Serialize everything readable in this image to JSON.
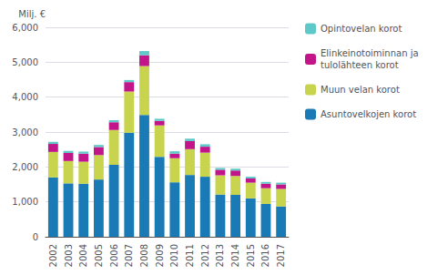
{
  "chart_data": {
    "type": "bar",
    "stacked": true,
    "grid": true,
    "legend": "right",
    "ylabel": "Milj. €",
    "categories": [
      "2002",
      "2003",
      "2004",
      "2005",
      "2006",
      "2007",
      "2008",
      "2009",
      "2010",
      "2011",
      "2012",
      "2013",
      "2014",
      "2015",
      "2016",
      "2017"
    ],
    "ylim": [
      0,
      6000
    ],
    "yticks": [
      0,
      1000,
      2000,
      3000,
      4000,
      5000,
      6000
    ],
    "series": [
      {
        "name": "Asuntovelkojen korot",
        "color": "#1a7ab5",
        "values": [
          1700,
          1530,
          1520,
          1640,
          2060,
          2980,
          3490,
          2290,
          1560,
          1770,
          1720,
          1210,
          1200,
          1100,
          940,
          870
        ]
      },
      {
        "name": "Muun velan korot",
        "color": "#c8d44e",
        "values": [
          730,
          640,
          630,
          700,
          1000,
          1180,
          1400,
          900,
          690,
          740,
          690,
          550,
          540,
          450,
          450,
          500
        ]
      },
      {
        "name": "Elinkeinotoiminnan ja\ntulolähteen korot",
        "color": "#c2158a",
        "values": [
          230,
          230,
          230,
          230,
          220,
          270,
          310,
          130,
          130,
          230,
          170,
          160,
          160,
          120,
          130,
          130
        ]
      },
      {
        "name": "Opintovelan korot",
        "color": "#5fc8c8",
        "values": [
          60,
          60,
          60,
          60,
          60,
          60,
          120,
          60,
          70,
          70,
          70,
          50,
          50,
          50,
          50,
          50
        ]
      }
    ]
  }
}
